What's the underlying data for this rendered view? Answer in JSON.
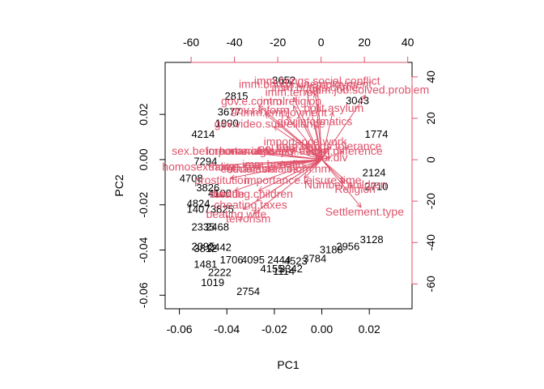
{
  "chart_data": {
    "type": "scatter",
    "subtype": "biplot",
    "title": "",
    "xlabel": "PC1",
    "ylabel": "PC2",
    "xlim": [
      -0.066,
      0.038
    ],
    "ylim": [
      -0.066,
      0.043
    ],
    "x_ticks": [
      -0.06,
      -0.04,
      -0.02,
      0.0,
      0.02
    ],
    "x_tick_labels": [
      "-0.06",
      "-0.04",
      "-0.02",
      "0.00",
      "0.02"
    ],
    "y_ticks": [
      -0.06,
      -0.04,
      -0.02,
      0.0,
      0.02
    ],
    "y_tick_labels": [
      "-0.06",
      "-0.04",
      "-0.02",
      "0.00",
      "0.02"
    ],
    "top_axis": {
      "lim": [
        -72,
        42
      ],
      "ticks": [
        -60,
        -40,
        -20,
        0,
        20,
        40
      ],
      "tick_labels": [
        "-60",
        "-40",
        "-20",
        "0",
        "20",
        "40"
      ],
      "color": "#DF536B"
    },
    "right_axis": {
      "lim": [
        -72,
        47
      ],
      "ticks": [
        -60,
        -40,
        -20,
        0,
        20,
        40
      ],
      "tick_labels": [
        "-60",
        "-40",
        "-20",
        "0",
        "20",
        "40"
      ],
      "color": "#DF536B"
    },
    "observations": [
      {
        "label": "2754",
        "x": -0.031,
        "y": -0.0585
      },
      {
        "label": "1019",
        "x": -0.046,
        "y": -0.0545
      },
      {
        "label": "2222",
        "x": -0.043,
        "y": -0.05
      },
      {
        "label": "1481",
        "x": -0.049,
        "y": -0.0465
      },
      {
        "label": "1114",
        "x": -0.016,
        "y": -0.0495
      },
      {
        "label": "4155",
        "x": -0.021,
        "y": -0.0485
      },
      {
        "label": "3342",
        "x": -0.013,
        "y": -0.0485
      },
      {
        "label": "1706",
        "x": -0.038,
        "y": -0.0445
      },
      {
        "label": "4095",
        "x": -0.029,
        "y": -0.0445
      },
      {
        "label": "2444",
        "x": -0.018,
        "y": -0.0445
      },
      {
        "label": "4523",
        "x": -0.011,
        "y": -0.045
      },
      {
        "label": "3784",
        "x": -0.003,
        "y": -0.044
      },
      {
        "label": "3188",
        "x": 0.004,
        "y": -0.04
      },
      {
        "label": "2956",
        "x": 0.011,
        "y": -0.0385
      },
      {
        "label": "3128",
        "x": 0.021,
        "y": -0.0355
      },
      {
        "label": "2095",
        "x": -0.05,
        "y": -0.0385
      },
      {
        "label": "3812",
        "x": -0.049,
        "y": -0.0395
      },
      {
        "label": "2442",
        "x": -0.043,
        "y": -0.039
      },
      {
        "label": "2335",
        "x": -0.05,
        "y": -0.03
      },
      {
        "label": "2468",
        "x": -0.044,
        "y": -0.03
      },
      {
        "label": "4824",
        "x": -0.052,
        "y": -0.0195
      },
      {
        "label": "1407",
        "x": -0.052,
        "y": -0.022
      },
      {
        "label": "3825",
        "x": -0.042,
        "y": -0.022
      },
      {
        "label": "4100",
        "x": -0.043,
        "y": -0.015
      },
      {
        "label": "4708",
        "x": -0.055,
        "y": -0.0085
      },
      {
        "label": "3826",
        "x": -0.048,
        "y": -0.0125
      },
      {
        "label": "7294",
        "x": -0.049,
        "y": -0.001
      },
      {
        "label": "4214",
        "x": -0.05,
        "y": 0.011
      },
      {
        "label": "1990",
        "x": -0.04,
        "y": 0.016
      },
      {
        "label": "3677",
        "x": -0.039,
        "y": 0.021
      },
      {
        "label": "2815",
        "x": -0.036,
        "y": 0.028
      },
      {
        "label": "3652",
        "x": -0.016,
        "y": 0.035
      },
      {
        "label": "3043",
        "x": 0.015,
        "y": 0.026
      },
      {
        "label": "1774",
        "x": 0.023,
        "y": 0.011
      },
      {
        "label": "2124",
        "x": 0.022,
        "y": -0.006
      },
      {
        "label": "2710",
        "x": 0.023,
        "y": -0.012
      }
    ],
    "loadings": [
      {
        "label": "imm.brings.social.conflict",
        "x": -0.002,
        "y": 0.035
      },
      {
        "label": "imm.brings.unemployment",
        "x": -0.007,
        "y": 0.0335
      },
      {
        "label": "imm.job.solved.problem",
        "x": 0.02,
        "y": 0.031
      },
      {
        "label": "imm.brings.crime",
        "x": -0.003,
        "y": 0.032
      },
      {
        "label": "imm.terror",
        "x": -0.013,
        "y": 0.03
      },
      {
        "label": "gov.e.control",
        "x": -0.029,
        "y": 0.026
      },
      {
        "label": "imm.religion",
        "x": -0.013,
        "y": 0.026
      },
      {
        "label": "polit.asylum",
        "x": 0.005,
        "y": 0.023
      },
      {
        "label": "gov.r.inform",
        "x": -0.026,
        "y": 0.022
      },
      {
        "label": "imm.employment",
        "x": -0.016,
        "y": 0.021
      },
      {
        "label": "gov.video.surveillance",
        "x": -0.022,
        "y": 0.016
      },
      {
        "label": "gov.informatics",
        "x": -0.003,
        "y": 0.017
      },
      {
        "label": "importance.work",
        "x": -0.007,
        "y": 0.008
      },
      {
        "label": "imm.brings.tolerance",
        "x": 0.003,
        "y": 0.006
      },
      {
        "label": "pol.interest",
        "x": -0.015,
        "y": 0.005
      },
      {
        "label": "pol.action",
        "x": -0.007,
        "y": 0.004
      },
      {
        "label": "sex.before.marriage",
        "x": -0.042,
        "y": 0.004
      },
      {
        "label": "importance.family",
        "x": -0.03,
        "y": 0.004
      },
      {
        "label": "home.abuse",
        "x": -0.03,
        "y": 0.004
      },
      {
        "label": "imm.difference",
        "x": 0.01,
        "y": 0.004
      },
      {
        "label": "pol.div",
        "x": 0.004,
        "y": 0.001
      },
      {
        "label": "homosexuality",
        "x": -0.052,
        "y": -0.003
      },
      {
        "label": "imm.benefits",
        "x": -0.02,
        "y": -0.002
      },
      {
        "label": "home.sex",
        "x": -0.036,
        "y": -0.003
      },
      {
        "label": "euthanasia",
        "x": -0.031,
        "y": -0.004
      },
      {
        "label": "social.females",
        "x": -0.025,
        "y": -0.004
      },
      {
        "label": "hom.hm",
        "x": -0.005,
        "y": -0.004
      },
      {
        "label": "prostitution",
        "x": -0.042,
        "y": -0.009
      },
      {
        "label": "importance.leisure.time",
        "x": -0.008,
        "y": -0.009
      },
      {
        "label": "Number.children",
        "x": 0.01,
        "y": -0.011
      },
      {
        "label": "Religion",
        "x": 0.014,
        "y": -0.013
      },
      {
        "label": "suicide",
        "x": -0.04,
        "y": -0.015
      },
      {
        "label": "beating.children",
        "x": -0.029,
        "y": -0.015
      },
      {
        "label": "cheating.taxes",
        "x": -0.03,
        "y": -0.02
      },
      {
        "label": "Settlement.type",
        "x": 0.018,
        "y": -0.023
      },
      {
        "label": "beating.wife",
        "x": -0.036,
        "y": -0.024
      },
      {
        "label": "terrorism",
        "x": -0.031,
        "y": -0.026
      }
    ]
  }
}
